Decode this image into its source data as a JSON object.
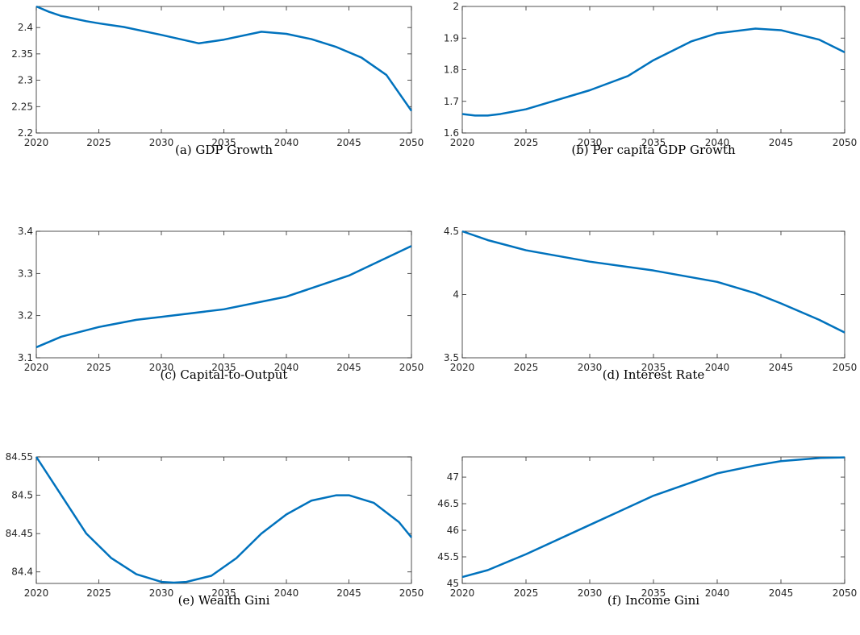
{
  "chart_data": [
    {
      "type": "line",
      "caption": "(a) GDP Growth",
      "color": "#0072bd",
      "x": [
        2020,
        2021,
        2022,
        2024,
        2025,
        2027,
        2030,
        2033,
        2035,
        2038,
        2040,
        2042,
        2044,
        2046,
        2048,
        2050
      ],
      "values": [
        2.44,
        2.43,
        2.422,
        2.412,
        2.408,
        2.401,
        2.386,
        2.37,
        2.377,
        2.392,
        2.388,
        2.378,
        2.363,
        2.343,
        2.31,
        2.242
      ],
      "xlim": [
        2020,
        2050
      ],
      "xticks": [
        2020,
        2025,
        2030,
        2035,
        2040,
        2045,
        2050
      ],
      "ylim": [
        2.2,
        2.44
      ],
      "yticks": [
        2.2,
        2.25,
        2.3,
        2.35,
        2.4
      ]
    },
    {
      "type": "line",
      "caption": "(b) Per capita GDP Growth",
      "color": "#0072bd",
      "x": [
        2020,
        2021,
        2022,
        2023,
        2025,
        2030,
        2033,
        2035,
        2038,
        2040,
        2043,
        2045,
        2048,
        2050
      ],
      "values": [
        1.66,
        1.655,
        1.655,
        1.66,
        1.675,
        1.735,
        1.78,
        1.83,
        1.89,
        1.915,
        1.93,
        1.925,
        1.895,
        1.855
      ],
      "xlim": [
        2020,
        2050
      ],
      "xticks": [
        2020,
        2025,
        2030,
        2035,
        2040,
        2045,
        2050
      ],
      "ylim": [
        1.6,
        2
      ],
      "yticks": [
        1.6,
        1.7,
        1.8,
        1.9,
        2
      ]
    },
    {
      "type": "line",
      "caption": "(c) Capital-to-Output",
      "color": "#0072bd",
      "x": [
        2020,
        2022,
        2025,
        2028,
        2030,
        2035,
        2040,
        2045,
        2050
      ],
      "values": [
        3.125,
        3.15,
        3.173,
        3.19,
        3.197,
        3.215,
        3.245,
        3.295,
        3.365
      ],
      "xlim": [
        2020,
        2050
      ],
      "xticks": [
        2020,
        2025,
        2030,
        2035,
        2040,
        2045,
        2050
      ],
      "ylim": [
        3.1,
        3.4
      ],
      "yticks": [
        3.1,
        3.2,
        3.3,
        3.4
      ]
    },
    {
      "type": "line",
      "caption": "(d) Interest Rate",
      "color": "#0072bd",
      "x": [
        2020,
        2022,
        2025,
        2030,
        2035,
        2040,
        2043,
        2045,
        2048,
        2050
      ],
      "values": [
        4.5,
        4.43,
        4.35,
        4.26,
        4.19,
        4.1,
        4.01,
        3.93,
        3.8,
        3.7
      ],
      "xlim": [
        2020,
        2050
      ],
      "xticks": [
        2020,
        2025,
        2030,
        2035,
        2040,
        2045,
        2050
      ],
      "ylim": [
        3.5,
        4.5
      ],
      "yticks": [
        3.5,
        4,
        4.5
      ]
    },
    {
      "type": "line",
      "caption": "(e) Wealth Gini",
      "color": "#0072bd",
      "x": [
        2020,
        2022,
        2024,
        2026,
        2028,
        2030,
        2031,
        2032,
        2034,
        2036,
        2038,
        2040,
        2042,
        2044,
        2045,
        2047,
        2049,
        2050
      ],
      "values": [
        84.55,
        84.5,
        84.45,
        84.418,
        84.397,
        84.387,
        84.386,
        84.387,
        84.395,
        84.418,
        84.45,
        84.475,
        84.493,
        84.5,
        84.5,
        84.49,
        84.465,
        84.445
      ],
      "xlim": [
        2020,
        2050
      ],
      "xticks": [
        2020,
        2025,
        2030,
        2035,
        2040,
        2045,
        2050
      ],
      "ylim": [
        84.385,
        84.55
      ],
      "yticks": [
        84.4,
        84.45,
        84.5,
        84.55
      ]
    },
    {
      "type": "line",
      "caption": "(f) Income Gini",
      "color": "#0072bd",
      "x": [
        2020,
        2022,
        2025,
        2030,
        2035,
        2040,
        2043,
        2045,
        2048,
        2050
      ],
      "values": [
        45.12,
        45.25,
        45.55,
        46.1,
        46.65,
        47.07,
        47.22,
        47.3,
        47.36,
        47.37
      ],
      "xlim": [
        2020,
        2050
      ],
      "xticks": [
        2020,
        2025,
        2030,
        2035,
        2040,
        2045,
        2050
      ],
      "ylim": [
        45,
        47.38
      ],
      "yticks": [
        45,
        45.5,
        46,
        46.5,
        47
      ]
    }
  ]
}
